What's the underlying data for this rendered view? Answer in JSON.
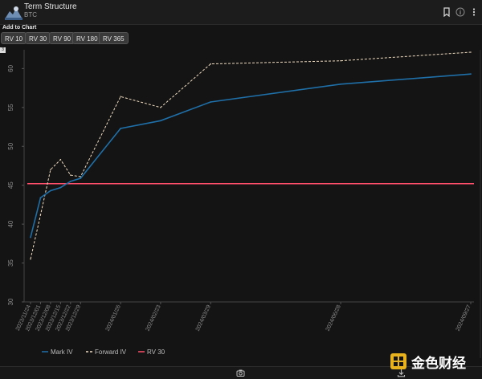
{
  "header": {
    "title": "Term Structure",
    "subtitle": "BTC"
  },
  "toolbar": {
    "add_label": "Add to Chart",
    "buttons": [
      "RV 10",
      "RV 30",
      "RV 90",
      "RV 180",
      "RV 365"
    ]
  },
  "badge": "3",
  "watermark": {
    "text": "金色财经"
  },
  "colors": {
    "mark_iv": "#1f6fa8",
    "forward_iv": "#f0dcc0",
    "rv30": "#ff4f6a",
    "background": "#141414"
  },
  "chart_data": {
    "type": "line",
    "ylim": [
      30,
      62
    ],
    "yticks": [
      30,
      35,
      40,
      45,
      50,
      55,
      60
    ],
    "grid": false,
    "legend_position": "bottom-left",
    "x_labels": [
      "2023/11/24",
      "2023/12/01",
      "2023/12/08",
      "2023/12/15",
      "2023/12/22",
      "2023/12/29",
      "2024/01/26",
      "2024/02/23",
      "2024/03/29",
      "2024/06/28",
      "2024/09/27"
    ],
    "x_days": [
      0,
      7,
      14,
      21,
      28,
      35,
      63,
      91,
      126,
      217,
      308
    ],
    "series": [
      {
        "name": "Mark IV",
        "style": "solid",
        "values": [
          38.3,
          43.4,
          44.3,
          44.7,
          45.5,
          45.9,
          52.3,
          53.3,
          55.7,
          58.0,
          59.3
        ]
      },
      {
        "name": "Forward IV",
        "style": "dashed",
        "values": [
          35.5,
          41.2,
          47.0,
          48.3,
          46.3,
          46.1,
          56.4,
          55.0,
          60.6,
          61.0,
          62.1
        ]
      },
      {
        "name": "RV 30",
        "style": "solid",
        "constant": 45.2
      }
    ]
  }
}
